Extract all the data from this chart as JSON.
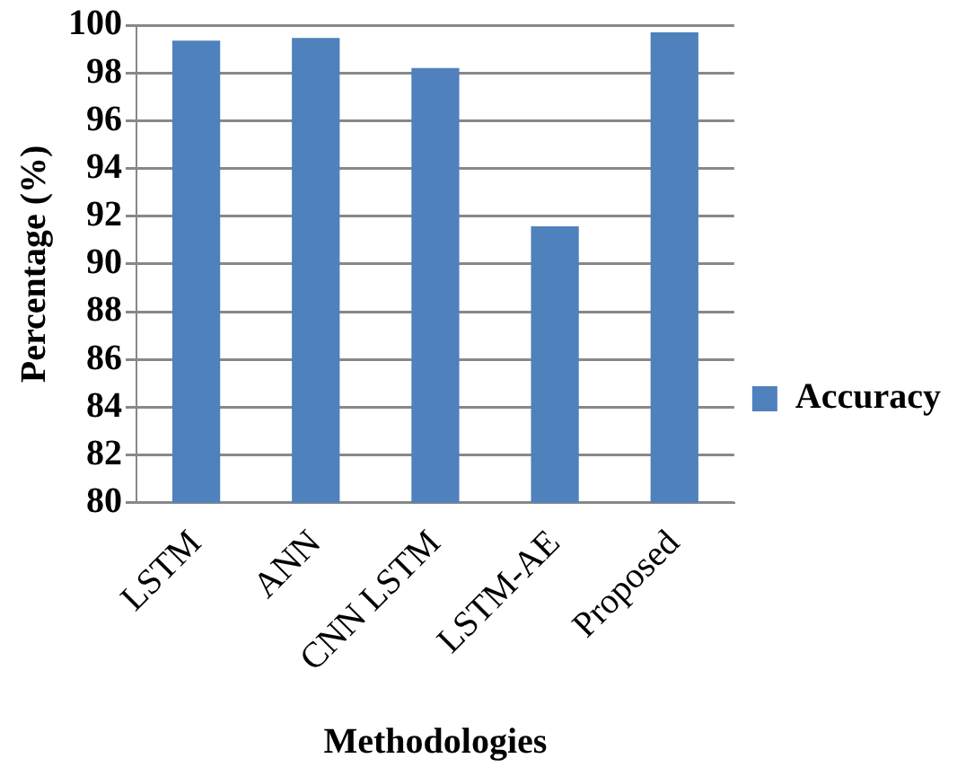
{
  "chart_data": {
    "type": "bar",
    "xlabel": "Methodologies",
    "ylabel": "Percentage (%)",
    "categories": [
      "LSTM",
      "ANN",
      "CNN LSTM",
      "LSTM-AE",
      "Proposed"
    ],
    "series": [
      {
        "name": "Accuracy",
        "color": "#4f81bd",
        "values": [
          99.35,
          99.46,
          98.2,
          91.58,
          99.7
        ]
      }
    ],
    "ylim": [
      80,
      100
    ],
    "yticks": [
      80,
      82,
      84,
      86,
      88,
      90,
      92,
      94,
      96,
      98,
      100
    ],
    "grid": "y",
    "legend": "right"
  }
}
